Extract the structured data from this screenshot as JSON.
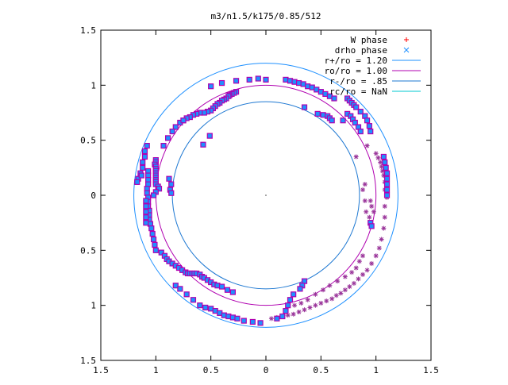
{
  "chart_data": {
    "type": "scatter",
    "title": "m3/n1.5/k175/0.85/512",
    "xlim": [
      -1.5,
      1.5
    ],
    "ylim": [
      -1.5,
      1.5
    ],
    "x_ticks": [
      -1.5,
      -1,
      -0.5,
      0,
      0.5,
      1,
      1.5
    ],
    "y_ticks": [
      -1.5,
      -1,
      -0.5,
      0,
      0.5,
      1,
      1.5
    ],
    "x_tick_labels": [
      "1.5",
      "1",
      "0.5",
      "0",
      "0.5",
      "1",
      "1.5"
    ],
    "y_tick_labels": [
      "1.5",
      "1",
      "0.5",
      "0",
      "0.5",
      "1",
      "1.5"
    ],
    "grid": false,
    "legend_position": "top-right",
    "legend": [
      {
        "label": "W phase",
        "color": "#ff0000",
        "marker": "plus"
      },
      {
        "label": "drho phase",
        "color": "#1e90ff",
        "marker": "x"
      },
      {
        "label": "r+/ro = 1.20",
        "color": "#1e90ff",
        "marker": "line"
      },
      {
        "label": "ro/ro = 1.00",
        "color": "#b000b0",
        "marker": "line"
      },
      {
        "label": "r-/ro = .85",
        "color": "#1e78d2",
        "marker": "line"
      },
      {
        "label": "rc/ro = NaN",
        "color": "#00c8d2",
        "marker": "line"
      }
    ],
    "circles": [
      {
        "name": "r+/ro",
        "radius": 1.2,
        "color": "#1e90ff"
      },
      {
        "name": "ro/ro",
        "radius": 1.0,
        "color": "#b000b0"
      },
      {
        "name": "r-/ro",
        "radius": 0.85,
        "color": "#1e78d2"
      }
    ],
    "colors": {
      "square_fill": "#1e90ff",
      "square_edge": "#b000b0",
      "star": "#993399"
    },
    "square_points": [
      [
        0.18,
        1.05
      ],
      [
        0.22,
        1.04
      ],
      [
        0.26,
        1.03
      ],
      [
        0.3,
        1.02
      ],
      [
        0.34,
        1.01
      ],
      [
        0.38,
        0.99
      ],
      [
        0.42,
        0.98
      ],
      [
        0.46,
        0.96
      ],
      [
        0.5,
        0.94
      ],
      [
        0.54,
        0.92
      ],
      [
        0.58,
        0.9
      ],
      [
        0.62,
        0.88
      ],
      [
        0.0,
        1.05
      ],
      [
        -0.07,
        1.06
      ],
      [
        -0.15,
        1.05
      ],
      [
        -0.27,
        1.04
      ],
      [
        -0.4,
        1.02
      ],
      [
        -0.5,
        0.99
      ],
      [
        -0.27,
        0.94
      ],
      [
        -0.29,
        0.93
      ],
      [
        -0.31,
        0.92
      ],
      [
        -0.33,
        0.91
      ],
      [
        -0.34,
        0.9
      ],
      [
        -0.36,
        0.88
      ],
      [
        -0.38,
        0.87
      ],
      [
        -0.4,
        0.86
      ],
      [
        -0.42,
        0.84
      ],
      [
        -0.44,
        0.83
      ],
      [
        -0.46,
        0.81
      ],
      [
        -0.48,
        0.79
      ],
      [
        -0.5,
        0.77
      ],
      [
        -0.53,
        0.76
      ],
      [
        -0.56,
        0.75
      ],
      [
        -0.6,
        0.75
      ],
      [
        -0.63,
        0.74
      ],
      [
        -0.66,
        0.73
      ],
      [
        -0.69,
        0.71
      ],
      [
        -0.72,
        0.7
      ],
      [
        -0.75,
        0.68
      ],
      [
        -0.78,
        0.66
      ],
      [
        -0.82,
        0.62
      ],
      [
        -0.85,
        0.58
      ],
      [
        -0.89,
        0.52
      ],
      [
        -0.93,
        0.45
      ],
      [
        -0.75,
        0.68
      ],
      [
        -0.57,
        0.46
      ],
      [
        -0.51,
        0.54
      ],
      [
        -1.0,
        0.32
      ],
      [
        -1.0,
        0.3
      ],
      [
        -1.01,
        0.28
      ],
      [
        -1.0,
        0.26
      ],
      [
        -1.0,
        0.24
      ],
      [
        -1.0,
        0.22
      ],
      [
        -1.0,
        0.2
      ],
      [
        -1.0,
        0.18
      ],
      [
        -1.0,
        0.16
      ],
      [
        -1.0,
        0.14
      ],
      [
        -1.0,
        0.12
      ],
      [
        -1.0,
        0.1
      ],
      [
        -0.98,
        0.08
      ],
      [
        -0.97,
        0.06
      ],
      [
        -1.0,
        0.03
      ],
      [
        -1.02,
        0.0
      ],
      [
        -0.88,
        0.15
      ],
      [
        -0.86,
        0.1
      ],
      [
        -0.87,
        0.05
      ],
      [
        -0.86,
        0.02
      ],
      [
        -1.08,
        0.45
      ],
      [
        -1.1,
        0.4
      ],
      [
        -1.1,
        0.35
      ],
      [
        -1.12,
        0.3
      ],
      [
        -1.12,
        0.25
      ],
      [
        -1.14,
        0.2
      ],
      [
        -1.16,
        0.15
      ],
      [
        -1.17,
        0.12
      ],
      [
        -1.13,
        0.18
      ],
      [
        -1.07,
        0.22
      ],
      [
        -1.07,
        0.18
      ],
      [
        -1.07,
        0.14
      ],
      [
        -1.07,
        0.1
      ],
      [
        -1.08,
        0.06
      ],
      [
        -1.08,
        0.02
      ],
      [
        -1.07,
        -0.02
      ],
      [
        -1.07,
        -0.06
      ],
      [
        -1.07,
        -0.1
      ],
      [
        -1.06,
        -0.14
      ],
      [
        -1.06,
        -0.18
      ],
      [
        -1.06,
        -0.22
      ],
      [
        -1.05,
        -0.26
      ],
      [
        -1.04,
        -0.3
      ],
      [
        -1.03,
        -0.35
      ],
      [
        -1.02,
        -0.4
      ],
      [
        -1.01,
        -0.45
      ],
      [
        -1.0,
        -0.5
      ],
      [
        -1.09,
        -0.05
      ],
      [
        -1.09,
        -0.1
      ],
      [
        -1.09,
        -0.15
      ],
      [
        -1.09,
        -0.2
      ],
      [
        -1.09,
        -0.25
      ],
      [
        -0.95,
        -0.52
      ],
      [
        -0.92,
        -0.55
      ],
      [
        -0.9,
        -0.58
      ],
      [
        -0.88,
        -0.6
      ],
      [
        -0.85,
        -0.62
      ],
      [
        -0.82,
        -0.64
      ],
      [
        -0.79,
        -0.66
      ],
      [
        -0.76,
        -0.68
      ],
      [
        -0.73,
        -0.7
      ],
      [
        -0.71,
        -0.71
      ],
      [
        -0.69,
        -0.71
      ],
      [
        -0.67,
        -0.71
      ],
      [
        -0.65,
        -0.71
      ],
      [
        -0.63,
        -0.71
      ],
      [
        -0.6,
        -0.72
      ],
      [
        -0.58,
        -0.74
      ],
      [
        -0.56,
        -0.75
      ],
      [
        -0.53,
        -0.77
      ],
      [
        -0.5,
        -0.79
      ],
      [
        -0.47,
        -0.81
      ],
      [
        -0.44,
        -0.82
      ],
      [
        -0.4,
        -0.83
      ],
      [
        -0.35,
        -0.86
      ],
      [
        -0.3,
        -0.88
      ],
      [
        -0.82,
        -0.82
      ],
      [
        -0.78,
        -0.85
      ],
      [
        -0.72,
        -0.9
      ],
      [
        -0.66,
        -0.95
      ],
      [
        -0.6,
        -1.0
      ],
      [
        -0.55,
        -1.02
      ],
      [
        -0.5,
        -1.03
      ],
      [
        -0.46,
        -1.05
      ],
      [
        -0.42,
        -1.07
      ],
      [
        -0.38,
        -1.09
      ],
      [
        -0.34,
        -1.1
      ],
      [
        -0.3,
        -1.11
      ],
      [
        -0.26,
        -1.12
      ],
      [
        -0.2,
        -1.14
      ],
      [
        -0.12,
        -1.15
      ],
      [
        -0.05,
        -1.16
      ],
      [
        0.35,
        0.8
      ],
      [
        0.47,
        0.74
      ],
      [
        0.52,
        0.73
      ],
      [
        0.56,
        0.72
      ],
      [
        0.58,
        0.7
      ],
      [
        0.6,
        0.68
      ],
      [
        0.7,
        0.68
      ],
      [
        0.74,
        0.74
      ],
      [
        0.77,
        0.72
      ],
      [
        0.79,
        0.69
      ],
      [
        0.81,
        0.66
      ],
      [
        0.84,
        0.62
      ],
      [
        0.86,
        0.58
      ],
      [
        0.74,
        0.88
      ],
      [
        0.76,
        0.86
      ],
      [
        0.78,
        0.84
      ],
      [
        0.8,
        0.82
      ],
      [
        0.82,
        0.8
      ],
      [
        0.86,
        0.76
      ],
      [
        0.9,
        0.72
      ],
      [
        0.92,
        0.68
      ],
      [
        0.94,
        0.63
      ],
      [
        0.95,
        0.58
      ],
      [
        1.07,
        0.35
      ],
      [
        1.08,
        0.3
      ],
      [
        1.09,
        0.25
      ],
      [
        1.1,
        0.2
      ],
      [
        1.1,
        0.15
      ],
      [
        1.1,
        0.1
      ],
      [
        1.1,
        0.05
      ],
      [
        1.1,
        0.0
      ],
      [
        0.95,
        -0.25
      ],
      [
        0.96,
        -0.28
      ],
      [
        0.35,
        -0.78
      ],
      [
        0.33,
        -0.82
      ],
      [
        0.31,
        -0.85
      ],
      [
        0.25,
        -0.9
      ],
      [
        0.22,
        -0.95
      ],
      [
        0.2,
        -1.0
      ],
      [
        0.18,
        -1.05
      ],
      [
        0.15,
        -1.1
      ],
      [
        0.1,
        -1.12
      ]
    ],
    "star_points": [
      [
        0.92,
        0.45
      ],
      [
        1.0,
        0.38
      ],
      [
        1.02,
        0.34
      ],
      [
        1.04,
        0.3
      ],
      [
        1.05,
        0.26
      ],
      [
        1.06,
        0.22
      ],
      [
        1.07,
        0.18
      ],
      [
        1.08,
        0.12
      ],
      [
        1.08,
        0.05
      ],
      [
        1.1,
        -0.02
      ],
      [
        1.08,
        -0.1
      ],
      [
        1.08,
        -0.2
      ],
      [
        1.07,
        -0.3
      ],
      [
        1.05,
        -0.4
      ],
      [
        1.03,
        -0.48
      ],
      [
        1.0,
        -0.55
      ],
      [
        0.96,
        -0.62
      ],
      [
        0.92,
        -0.68
      ],
      [
        0.88,
        -0.72
      ],
      [
        0.84,
        -0.76
      ],
      [
        0.8,
        -0.8
      ],
      [
        0.76,
        -0.83
      ],
      [
        0.72,
        -0.86
      ],
      [
        0.68,
        -0.89
      ],
      [
        0.64,
        -0.91
      ],
      [
        0.6,
        -0.94
      ],
      [
        0.55,
        -0.96
      ],
      [
        0.5,
        -0.98
      ],
      [
        0.45,
        -1.0
      ],
      [
        0.4,
        -1.02
      ],
      [
        0.35,
        -1.04
      ],
      [
        0.3,
        -1.06
      ],
      [
        0.25,
        -1.08
      ],
      [
        0.2,
        -1.09
      ],
      [
        0.15,
        -1.1
      ],
      [
        0.1,
        -1.11
      ],
      [
        0.05,
        -1.12
      ],
      [
        0.88,
        -0.55
      ],
      [
        0.85,
        -0.6
      ],
      [
        0.82,
        -0.66
      ],
      [
        0.78,
        -0.7
      ],
      [
        0.72,
        -0.74
      ],
      [
        0.65,
        -0.78
      ],
      [
        0.58,
        -0.82
      ],
      [
        0.52,
        -0.86
      ],
      [
        0.45,
        -0.9
      ],
      [
        0.38,
        -0.95
      ],
      [
        0.32,
        -0.98
      ],
      [
        0.26,
        -1.0
      ],
      [
        0.95,
        -0.05
      ],
      [
        0.96,
        -0.1
      ],
      [
        0.98,
        -0.15
      ],
      [
        0.94,
        -0.2
      ],
      [
        0.9,
        -0.05
      ],
      [
        0.91,
        -0.15
      ],
      [
        0.82,
        0.35
      ],
      [
        0.88,
        0.05
      ],
      [
        0.9,
        0.1
      ]
    ]
  }
}
